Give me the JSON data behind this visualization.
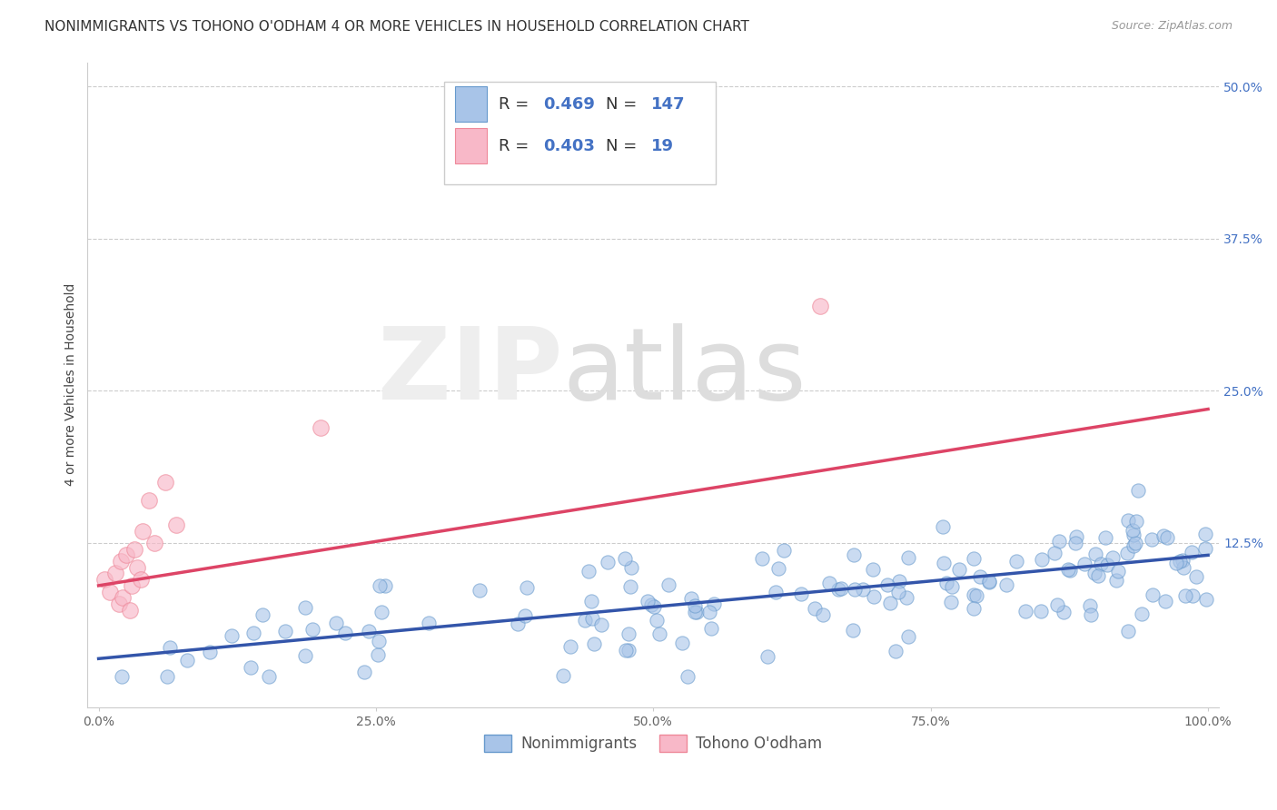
{
  "title": "NONIMMIGRANTS VS TOHONO O'ODHAM 4 OR MORE VEHICLES IN HOUSEHOLD CORRELATION CHART",
  "source": "Source: ZipAtlas.com",
  "ylabel": "4 or more Vehicles in Household",
  "xlim": [
    -0.01,
    1.01
  ],
  "ylim": [
    -0.01,
    0.52
  ],
  "xticks": [
    0.0,
    0.25,
    0.5,
    0.75,
    1.0
  ],
  "xtick_labels": [
    "0.0%",
    "25.0%",
    "50.0%",
    "75.0%",
    "100.0%"
  ],
  "yticks": [
    0.125,
    0.25,
    0.375,
    0.5
  ],
  "ytick_labels": [
    "12.5%",
    "25.0%",
    "37.5%",
    "50.0%"
  ],
  "blue_color": "#a8c4e8",
  "pink_color": "#f8b8c8",
  "blue_edge_color": "#6699cc",
  "pink_edge_color": "#ee8899",
  "blue_line_color": "#3355aa",
  "pink_line_color": "#dd4466",
  "blue_R": 0.469,
  "blue_N": 147,
  "pink_R": 0.403,
  "pink_N": 19,
  "legend_label_blue": "Nonimmigrants",
  "legend_label_pink": "Tohono O'odham",
  "blue_line_x0": 0.0,
  "blue_line_y0": 0.03,
  "blue_line_x1": 1.0,
  "blue_line_y1": 0.115,
  "pink_line_x0": 0.0,
  "pink_line_y0": 0.09,
  "pink_line_x1": 1.0,
  "pink_line_y1": 0.235,
  "grid_color": "#cccccc",
  "background_color": "#ffffff",
  "title_fontsize": 11,
  "axis_fontsize": 10,
  "tick_color": "#4472c4",
  "tick_fontsize": 10,
  "legend_text_color": "#333333",
  "legend_value_color": "#4472c4"
}
